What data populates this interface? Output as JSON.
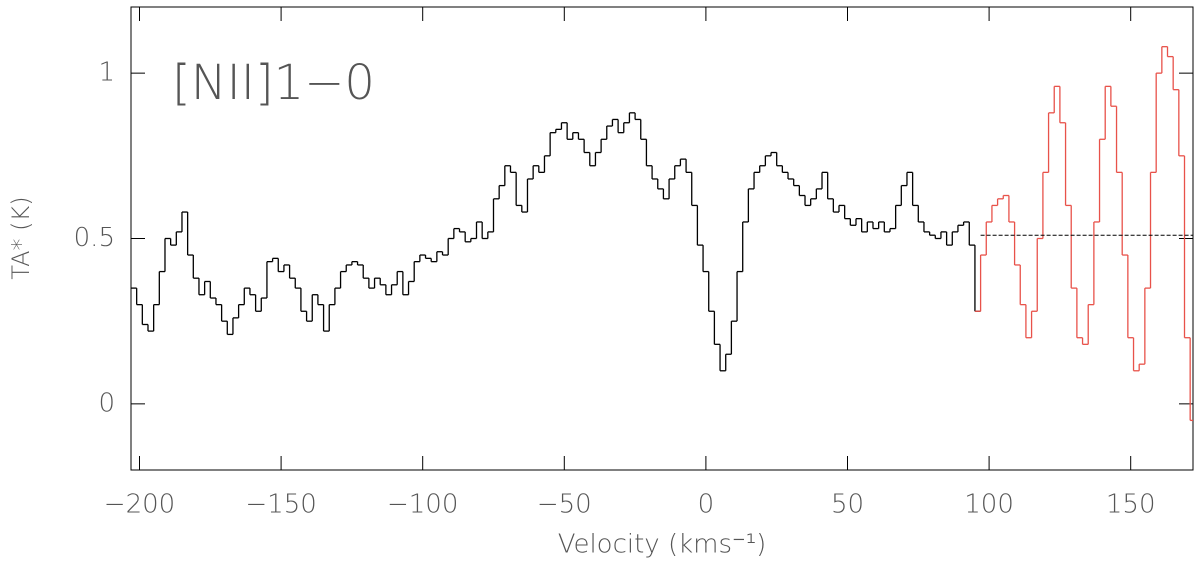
{
  "chart_data": {
    "type": "step",
    "annotation": "[NII]1−0",
    "xlabel": "Velocity (kms⁻¹)",
    "ylabel": "TA* (K)",
    "xlim": [
      -203,
      172
    ],
    "ylim": [
      -0.2,
      1.2
    ],
    "xticks": [
      -200,
      -150,
      -100,
      -50,
      0,
      50,
      100,
      150
    ],
    "yticks": [
      0,
      0.5,
      1
    ],
    "x": [
      -202,
      -200,
      -198,
      -196,
      -194,
      -192,
      -190,
      -188,
      -186,
      -184,
      -182,
      -180,
      -178,
      -176,
      -174,
      -172,
      -170,
      -168,
      -166,
      -164,
      -162,
      -160,
      -158,
      -156,
      -154,
      -152,
      -150,
      -148,
      -146,
      -144,
      -142,
      -140,
      -138,
      -136,
      -134,
      -132,
      -130,
      -128,
      -126,
      -124,
      -122,
      -120,
      -118,
      -116,
      -114,
      -112,
      -110,
      -108,
      -106,
      -104,
      -102,
      -100,
      -98,
      -96,
      -94,
      -92,
      -90,
      -88,
      -86,
      -84,
      -82,
      -80,
      -78,
      -76,
      -74,
      -72,
      -70,
      -68,
      -66,
      -64,
      -62,
      -60,
      -58,
      -56,
      -54,
      -52,
      -50,
      -48,
      -46,
      -44,
      -42,
      -40,
      -38,
      -36,
      -34,
      -32,
      -30,
      -28,
      -26,
      -24,
      -22,
      -20,
      -18,
      -16,
      -14,
      -12,
      -10,
      -8,
      -6,
      -4,
      -2,
      0,
      2,
      4,
      6,
      8,
      10,
      12,
      14,
      16,
      18,
      20,
      22,
      24,
      26,
      28,
      30,
      32,
      34,
      36,
      38,
      40,
      42,
      44,
      46,
      48,
      50,
      52,
      54,
      56,
      58,
      60,
      62,
      64,
      66,
      68,
      70,
      72,
      74,
      76,
      78,
      80,
      82,
      84,
      86,
      88,
      90,
      92,
      94,
      96,
      98,
      100,
      102,
      104,
      106,
      108,
      110,
      112,
      114,
      116,
      118,
      120,
      122,
      124,
      126,
      128,
      130,
      132,
      134,
      136,
      138,
      140,
      142,
      144,
      146,
      148,
      150,
      152,
      154,
      156,
      158,
      160,
      162,
      164,
      166,
      168,
      170,
      172
    ],
    "series": [
      {
        "color": "#000000",
        "values": [
          0.35,
          0.3,
          0.24,
          0.22,
          0.3,
          0.4,
          0.5,
          0.48,
          0.52,
          0.58,
          0.45,
          0.38,
          0.33,
          0.37,
          0.32,
          0.3,
          0.25,
          0.21,
          0.26,
          0.3,
          0.35,
          0.33,
          0.28,
          0.32,
          0.43,
          0.44,
          0.4,
          0.42,
          0.38,
          0.35,
          0.28,
          0.25,
          0.33,
          0.3,
          0.22,
          0.3,
          0.35,
          0.4,
          0.42,
          0.43,
          0.42,
          0.38,
          0.35,
          0.38,
          0.36,
          0.33,
          0.36,
          0.4,
          0.33,
          0.37,
          0.43,
          0.45,
          0.44,
          0.43,
          0.46,
          0.45,
          0.5,
          0.53,
          0.52,
          0.49,
          0.5,
          0.55,
          0.5,
          0.52,
          0.62,
          0.66,
          0.72,
          0.7,
          0.6,
          0.58,
          0.68,
          0.72,
          0.7,
          0.75,
          0.82,
          0.83,
          0.85,
          0.8,
          0.82,
          0.8,
          0.76,
          0.72,
          0.76,
          0.8,
          0.84,
          0.86,
          0.82,
          0.85,
          0.88,
          0.86,
          0.8,
          0.72,
          0.68,
          0.65,
          0.62,
          0.68,
          0.72,
          0.74,
          0.7,
          0.6,
          0.48,
          0.4,
          0.28,
          0.18,
          0.1,
          0.15,
          0.25,
          0.4,
          0.55,
          0.65,
          0.7,
          0.72,
          0.75,
          0.76,
          0.72,
          0.7,
          0.68,
          0.66,
          0.63,
          0.6,
          0.62,
          0.65,
          0.7,
          0.62,
          0.58,
          0.6,
          0.56,
          0.54,
          0.56,
          0.52,
          0.55,
          0.53,
          0.55,
          0.52,
          0.53,
          0.6,
          0.66,
          0.7,
          0.6,
          0.55,
          0.52,
          0.51,
          0.5,
          0.52,
          0.48,
          0.52,
          0.54,
          0.55,
          0.48,
          0.28,
          null,
          null,
          null,
          null,
          null,
          null,
          null,
          null,
          null,
          null,
          null,
          null,
          null,
          null,
          null,
          null,
          null,
          null,
          null,
          null,
          null,
          null,
          null,
          null,
          null,
          null,
          null,
          null,
          null,
          null,
          null,
          null,
          null,
          null,
          null,
          null,
          null,
          null
        ]
      },
      {
        "color": "#e8524a",
        "values": [
          null,
          null,
          null,
          null,
          null,
          null,
          null,
          null,
          null,
          null,
          null,
          null,
          null,
          null,
          null,
          null,
          null,
          null,
          null,
          null,
          null,
          null,
          null,
          null,
          null,
          null,
          null,
          null,
          null,
          null,
          null,
          null,
          null,
          null,
          null,
          null,
          null,
          null,
          null,
          null,
          null,
          null,
          null,
          null,
          null,
          null,
          null,
          null,
          null,
          null,
          null,
          null,
          null,
          null,
          null,
          null,
          null,
          null,
          null,
          null,
          null,
          null,
          null,
          null,
          null,
          null,
          null,
          null,
          null,
          null,
          null,
          null,
          null,
          null,
          null,
          null,
          null,
          null,
          null,
          null,
          null,
          null,
          null,
          null,
          null,
          null,
          null,
          null,
          null,
          null,
          null,
          null,
          null,
          null,
          null,
          null,
          null,
          null,
          null,
          null,
          null,
          null,
          null,
          null,
          null,
          null,
          null,
          null,
          null,
          null,
          null,
          null,
          null,
          null,
          null,
          null,
          null,
          null,
          null,
          null,
          null,
          null,
          null,
          null,
          null,
          null,
          null,
          null,
          null,
          null,
          null,
          null,
          null,
          null,
          null,
          null,
          null,
          null,
          null,
          null,
          null,
          null,
          null,
          null,
          null,
          null,
          null,
          null,
          null,
          0.28,
          0.45,
          0.55,
          0.6,
          0.62,
          0.63,
          0.55,
          0.42,
          0.3,
          0.2,
          0.28,
          0.5,
          0.7,
          0.88,
          0.96,
          0.85,
          0.6,
          0.35,
          0.2,
          0.18,
          0.3,
          0.55,
          0.8,
          0.96,
          0.9,
          0.7,
          0.45,
          0.2,
          0.1,
          0.12,
          0.35,
          0.7,
          1.0,
          1.08,
          1.05,
          0.95,
          0.75,
          0.2,
          -0.05
        ]
      }
    ],
    "baseline": {
      "y": 0.51,
      "x": [
        97,
        172
      ],
      "color": "#000000"
    }
  }
}
